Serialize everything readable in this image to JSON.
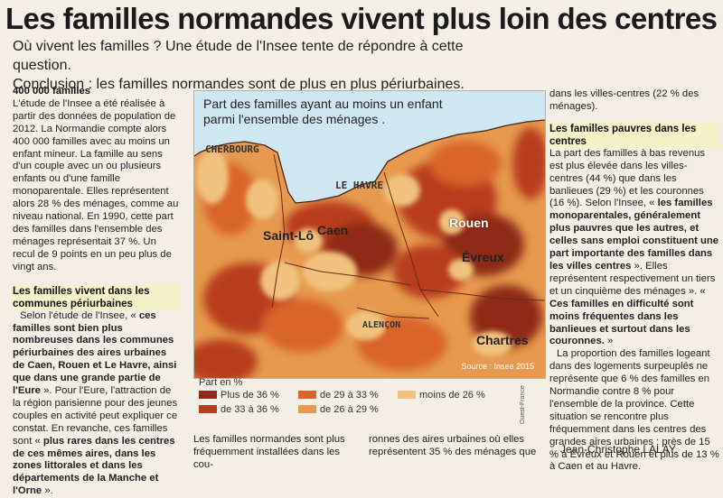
{
  "headline": "Les familles normandes vivent plus loin des centres",
  "lead": [
    "Où vivent les familles ? Une étude de l'Insee tente de répondre à cette question.",
    "Conclusion : les familles normandes sont de plus en plus périurbaines."
  ],
  "col1": {
    "kicker": "400 000 familles",
    "p1": "L'étude de l'Insee a été réalisée à partir des données de population de 2012. La Normandie compte alors 400 000 familles avec au moins un enfant mineur. La famille au sens d'un couple avec un ou plusieurs enfants ou d'une famille monoparentale. Elles représentent alors 28 % des ménages, comme au niveau national. En 1990, cette part des familles dans l'ensemble des ménages représentait 37 %. Un recul de 9 points en un peu plus de vingt ans.",
    "subhead": "Les familles vivent dans les communes périurbaines",
    "p2_intro": "Selon l'étude de l'Insee, « ",
    "p2_bold": "ces familles sont bien plus nombreuses dans les communes périurbaines des aires urbaines de Caen, Rouen et Le Havre, ainsi que dans une grande partie de l'Eure",
    "p2_rest": " ». Pour l'Eure, l'attraction de la région parisienne pour des jeunes couples en activité peut expliquer ce constat. En revanche, ces familles sont « ",
    "p2_bold2": "plus rares dans les centres de ces mêmes aires, dans les zones littorales et dans les départements de la Manche et l'Orne",
    "p2_end": " »."
  },
  "map": {
    "title_line1": "Part des familles ayant au moins un enfant",
    "title_line2": "parmi l'ensemble des ménages .",
    "source": "Source : Insee 2015",
    "cities": {
      "cherbourg": "CHERBOURG",
      "le_havre": "LE HAVRE",
      "rouen": "Rouen",
      "caen": "Caen",
      "saint_lo": "Saint-Lô",
      "evreux": "Évreux",
      "alencon": "ALENÇON",
      "chartres": "Chartres"
    },
    "colors": {
      "sea": "#cfe7f2",
      "c36plus": "#8e2a17",
      "c33_36": "#b83d1e",
      "c29_33": "#d9652c",
      "c26_29": "#e79a4f",
      "c26minus": "#f0c27d"
    }
  },
  "legend": {
    "title": "Part en %",
    "items": [
      "Plus de 36 %",
      "de 33 à 36 %",
      "de 29 à 33 %",
      "de 26 à 29 %",
      "moins de 26 %"
    ],
    "credit": "Ouest-France"
  },
  "bottom": {
    "left": "Les familles normandes sont plus fréquemment installées dans les cou-",
    "right": "ronnes des aires urbaines où elles représentent 35 % des ménages que"
  },
  "col3": {
    "p0": "dans les villes-centres (22 % des ménages).",
    "subhead": "Les familles pauvres dans les centres",
    "p1": "La part des familles à bas revenus est plus élevée dans les villes-centres (44 %) que dans les banlieues (29 %) et les couronnes (16 %). Selon l'Insee, « ",
    "p1_bold": "les familles monoparentales, généralement plus pauvres que les autres, et celles sans emploi constituent une part importante des familles dans les villes centres",
    "p1_rest": " ». Elles représentent respectivement un tiers et un cinquième des ménages ». « ",
    "p1_bold2": "Ces familles en difficulté sont moins fréquentes dans les banlieues et surtout dans les couronnes.",
    "p1_end": " »",
    "p2": "La proportion des familles logeant dans des logements surpeuplés ne représente que 6 % des familles en Normandie contre 8 % pour l'ensemble de la province. Cette situation se rencontre plus fréquemment dans les centres des grandes aires urbaines : près de 15 % à Évreux et Rouen et plus de 13 % à Caen et au Havre."
  },
  "author": "Jean-Christophe LALAY."
}
